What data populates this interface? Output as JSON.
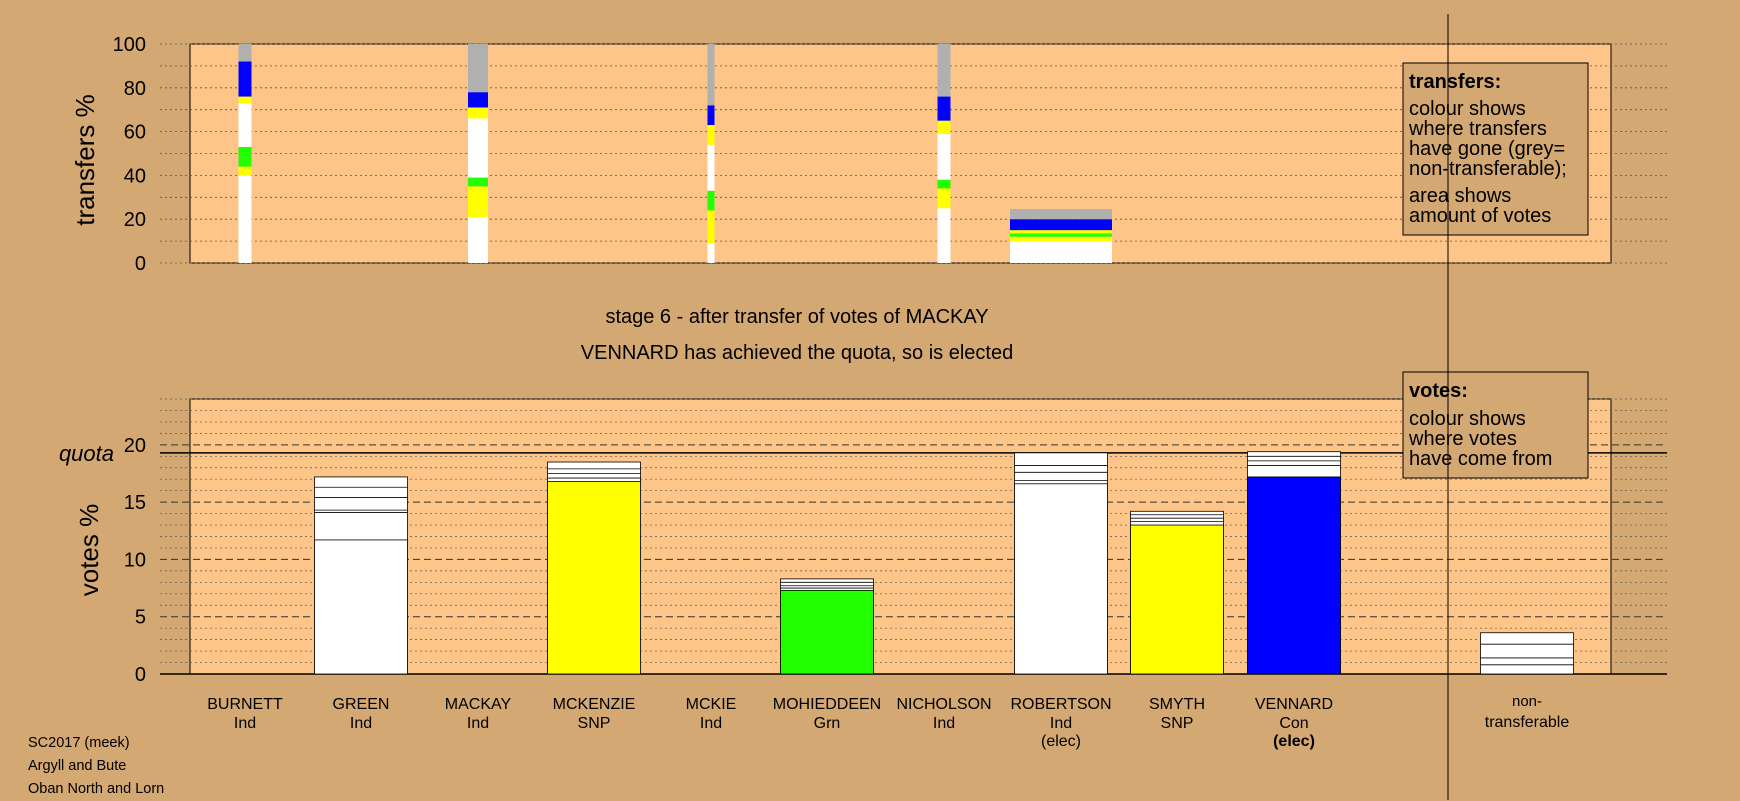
{
  "colors": {
    "background": "#d4a872",
    "plot_bg": "#fdc588",
    "Ind": "#ffffff",
    "SNP": "#ffff00",
    "Grn": "#22ff00",
    "Con": "#0000ff",
    "nontransferable": "#b0b0b0"
  },
  "heading": {
    "stage": "stage 6 - after transfer of votes of MACKAY",
    "result": "VENNARD has achieved the quota, so is elected"
  },
  "transfers_legend": {
    "title": "transfers:",
    "lines": [
      "colour shows",
      "where transfers",
      "have gone (grey=",
      "non-transferable);",
      "area shows",
      "amount of votes"
    ]
  },
  "votes_legend": {
    "title": "votes:",
    "lines": [
      "colour shows",
      "where votes",
      "have come from"
    ]
  },
  "footer": [
    "SC2017 (meek)",
    "Argyll and Bute",
    "Oban North and Lorn"
  ],
  "chart_data": [
    {
      "type": "bar",
      "name": "transfers",
      "ylabel": "transfers %",
      "ylim": [
        0,
        100
      ],
      "yticks": [
        0,
        20,
        40,
        60,
        80,
        100
      ],
      "columns": [
        {
          "candidate": "BURNETT",
          "segments": [
            {
              "party": "Ind",
              "value": 40
            },
            {
              "party": "SNP",
              "value": 4
            },
            {
              "party": "Grn",
              "value": 9
            },
            {
              "party": "Ind",
              "value": 20
            },
            {
              "party": "SNP",
              "value": 3
            },
            {
              "party": "Con",
              "value": 16
            },
            {
              "party": "nontransferable",
              "value": 8
            }
          ]
        },
        {
          "candidate": "MACKAY",
          "segments": [
            {
              "party": "Ind",
              "value": 21
            },
            {
              "party": "SNP",
              "value": 14
            },
            {
              "party": "Grn",
              "value": 4
            },
            {
              "party": "Ind",
              "value": 27
            },
            {
              "party": "SNP",
              "value": 5
            },
            {
              "party": "Con",
              "value": 7
            },
            {
              "party": "nontransferable",
              "value": 22
            }
          ]
        },
        {
          "candidate": "MCKIE",
          "segments": [
            {
              "party": "Ind",
              "value": 9
            },
            {
              "party": "SNP",
              "value": 15
            },
            {
              "party": "Grn",
              "value": 9
            },
            {
              "party": "Ind",
              "value": 21
            },
            {
              "party": "SNP",
              "value": 9
            },
            {
              "party": "Con",
              "value": 9
            },
            {
              "party": "nontransferable",
              "value": 28
            }
          ]
        },
        {
          "candidate": "NICHOLSON",
          "segments": [
            {
              "party": "Ind",
              "value": 25
            },
            {
              "party": "SNP",
              "value": 9
            },
            {
              "party": "Grn",
              "value": 4
            },
            {
              "party": "Ind",
              "value": 21
            },
            {
              "party": "SNP",
              "value": 6
            },
            {
              "party": "Con",
              "value": 11
            },
            {
              "party": "nontransferable",
              "value": 24
            }
          ]
        },
        {
          "candidate": "ROBERTSON",
          "segments": [
            {
              "party": "Ind",
              "value": 10
            },
            {
              "party": "SNP",
              "value": 2
            },
            {
              "party": "Grn",
              "value": 1.5
            },
            {
              "party": "SNP",
              "value": 1.5
            },
            {
              "party": "Con",
              "value": 5
            },
            {
              "party": "nontransferable",
              "value": 4.5
            }
          ]
        }
      ]
    },
    {
      "type": "bar",
      "name": "votes",
      "ylabel": "votes %",
      "ylim": [
        0,
        24
      ],
      "yticks": [
        0,
        5,
        10,
        15,
        20
      ],
      "quota": 19.3,
      "quota_label": "quota",
      "categories": [
        {
          "name": "BURNETT",
          "party": "Ind",
          "status": "",
          "total": 0,
          "base": 0,
          "base_party": "Ind",
          "dividers": []
        },
        {
          "name": "GREEN",
          "party": "Ind",
          "status": "",
          "total": 17.2,
          "base": 11.7,
          "base_party": "Ind",
          "dividers": [
            14.1,
            14.3,
            15.4,
            16.3
          ]
        },
        {
          "name": "MACKAY",
          "party": "Ind",
          "status": "",
          "total": 0,
          "base": 0,
          "base_party": "Ind",
          "dividers": []
        },
        {
          "name": "MCKENZIE",
          "party": "SNP",
          "status": "",
          "total": 18.5,
          "base": 16.8,
          "base_party": "SNP",
          "dividers": [
            17.1,
            17.5,
            17.9
          ]
        },
        {
          "name": "MCKIE",
          "party": "Ind",
          "status": "",
          "total": 0,
          "base": 0,
          "base_party": "Ind",
          "dividers": []
        },
        {
          "name": "MOHIEDDEEN",
          "party": "Grn",
          "status": "",
          "total": 8.3,
          "base": 7.3,
          "base_party": "Grn",
          "dividers": [
            7.5,
            7.7,
            8.0
          ]
        },
        {
          "name": "NICHOLSON",
          "party": "Ind",
          "status": "",
          "total": 0,
          "base": 0,
          "base_party": "Ind",
          "dividers": []
        },
        {
          "name": "ROBERTSON",
          "party": "Ind",
          "status": "(elec)",
          "status_bold": false,
          "total": 19.3,
          "base": 16.6,
          "base_party": "Ind",
          "dividers": [
            16.9,
            17.6,
            18.2
          ]
        },
        {
          "name": "SMYTH",
          "party": "SNP",
          "status": "",
          "total": 14.2,
          "base": 13.0,
          "base_party": "SNP",
          "dividers": [
            13.3,
            13.6,
            13.9
          ]
        },
        {
          "name": "VENNARD",
          "party": "Con",
          "status": "(elec)",
          "status_bold": true,
          "total": 19.4,
          "base": 17.2,
          "base_party": "Con",
          "dividers": [
            18.2,
            18.6,
            19.0
          ]
        }
      ],
      "nontransferable": {
        "label_lines": [
          "non-",
          "transferable"
        ],
        "total": 3.6,
        "dividers": [
          0.8,
          1.4,
          2.6
        ]
      }
    }
  ]
}
